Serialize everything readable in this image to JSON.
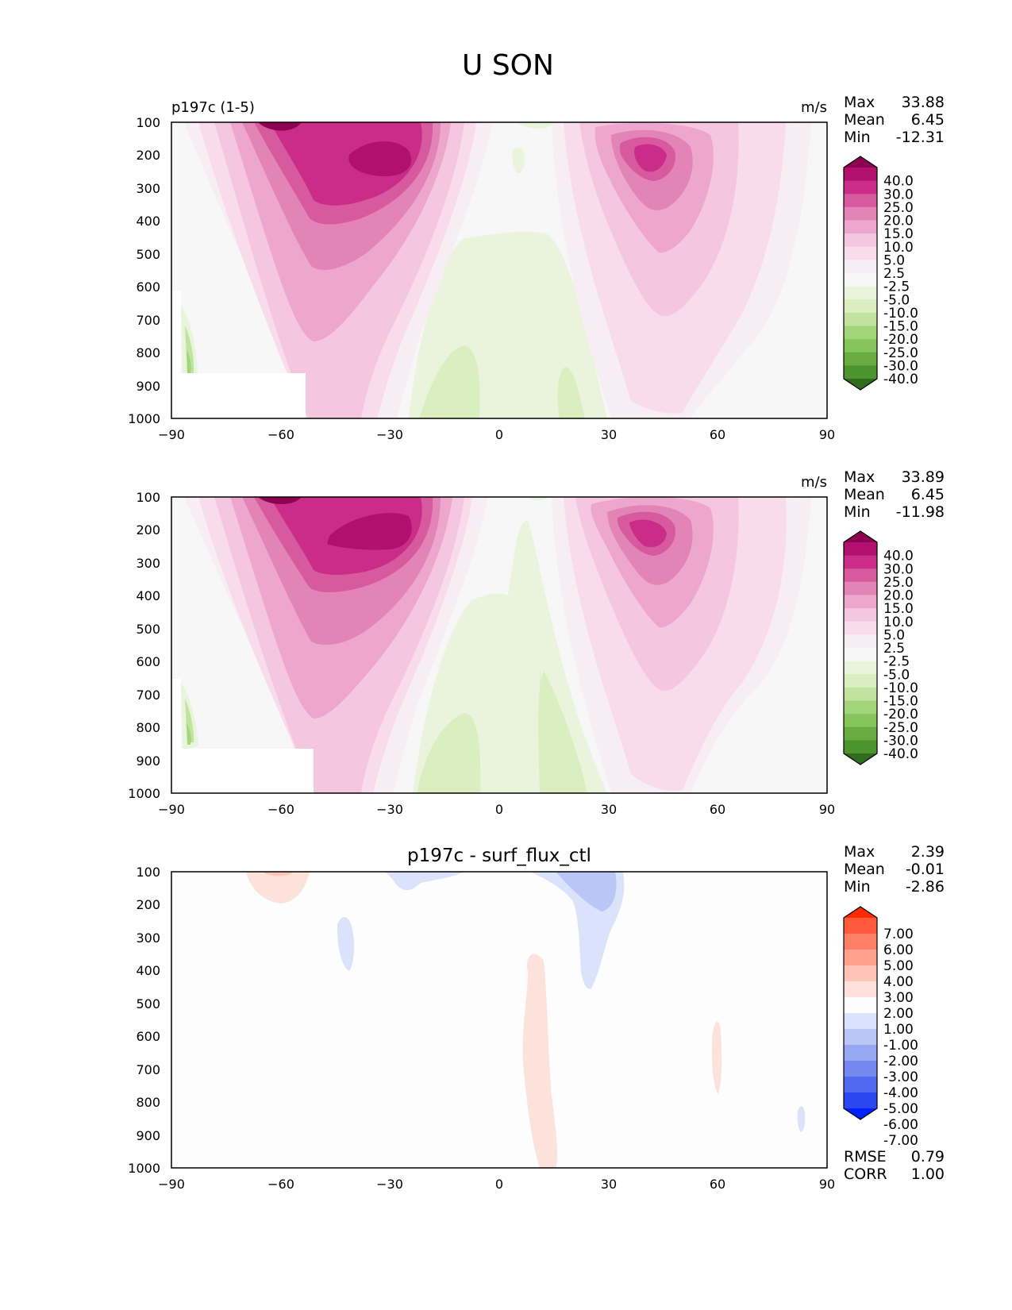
{
  "page_title": "U SON",
  "colors": {
    "div_pink_green": [
      "#8e0152",
      "#b1106f",
      "#c92d88",
      "#d85a9e",
      "#e384b7",
      "#eda6cc",
      "#f4c6e0",
      "#f8dcec",
      "#f7eef3",
      "#f7f7f7",
      "#eaf4dc",
      "#d9efbf",
      "#c0e4a0",
      "#a3d67a",
      "#86c55a",
      "#69ad41",
      "#4d932e",
      "#2f6d1b"
    ],
    "div_red_blue": [
      "#ff2a00",
      "#ff5a3c",
      "#ff7e66",
      "#ffa08c",
      "#ffc4b6",
      "#fde2dc",
      "#fdfdfd",
      "#dbe2fb",
      "#b9c6f6",
      "#96a8f2",
      "#7489ef",
      "#5169ee",
      "#2d47f0",
      "#0022ff"
    ]
  },
  "panels": [
    {
      "left_title": "p197c (1-5)",
      "center_title": "",
      "units": "m/s",
      "stats": [
        {
          "label": "Max",
          "value": "33.88"
        },
        {
          "label": "Mean",
          "value": "6.45"
        },
        {
          "label": "Min",
          "value": "-12.31"
        }
      ],
      "bottom_stats": [],
      "colorbar_labels": [
        "40.0",
        "30.0",
        "25.0",
        "20.0",
        "15.0",
        "10.0",
        "5.0",
        "2.5",
        "-2.5",
        "-5.0",
        "-10.0",
        "-15.0",
        "-20.0",
        "-25.0",
        "-30.0",
        "-40.0"
      ]
    },
    {
      "left_title": "",
      "center_title": "",
      "units": "m/s",
      "stats": [
        {
          "label": "Max",
          "value": "33.89"
        },
        {
          "label": "Mean",
          "value": "6.45"
        },
        {
          "label": "Min",
          "value": "-11.98"
        }
      ],
      "bottom_stats": [],
      "colorbar_labels": [
        "40.0",
        "30.0",
        "25.0",
        "20.0",
        "15.0",
        "10.0",
        "5.0",
        "2.5",
        "-2.5",
        "-5.0",
        "-10.0",
        "-15.0",
        "-20.0",
        "-25.0",
        "-30.0",
        "-40.0"
      ]
    },
    {
      "left_title": "",
      "center_title": "p197c - surf_flux_ctl",
      "units": "",
      "stats": [
        {
          "label": "Max",
          "value": "2.39"
        },
        {
          "label": "Mean",
          "value": "-0.01"
        },
        {
          "label": "Min",
          "value": "-2.86"
        }
      ],
      "bottom_stats": [
        {
          "label": "RMSE",
          "value": "0.79"
        },
        {
          "label": "CORR",
          "value": "1.00"
        }
      ],
      "colorbar_labels": [
        "7.00",
        "6.00",
        "5.00",
        "4.00",
        "3.00",
        "2.00",
        "1.00",
        "-1.00",
        "-2.00",
        "-3.00",
        "-4.00",
        "-5.00",
        "-6.00",
        "-7.00"
      ]
    }
  ],
  "chart_data": [
    {
      "type": "heatmap",
      "title": "p197c (1-5)",
      "units": "m/s",
      "x_ticks": [
        "−90",
        "−60",
        "−30",
        "0",
        "30",
        "60",
        "90"
      ],
      "y_ticks": [
        "100",
        "200",
        "300",
        "400",
        "500",
        "600",
        "700",
        "800",
        "900",
        "1000"
      ],
      "xlim": [
        -90,
        90
      ],
      "ylim": [
        1000,
        100
      ],
      "y_inverted": true,
      "contour_levels": [
        -40,
        -30,
        -25,
        -20,
        -15,
        -10,
        -5,
        -2.5,
        2.5,
        5,
        10,
        15,
        20,
        25,
        30,
        40
      ],
      "features": [
        {
          "kind": "jet_max",
          "lat": -42,
          "pressure": 200,
          "value": 33.88
        },
        {
          "kind": "jet_max",
          "lat": 40,
          "pressure": 200,
          "value": 25
        },
        {
          "kind": "easterly_min",
          "lat": 14,
          "pressure": 900,
          "value": -12.31
        }
      ],
      "stats": {
        "max": 33.88,
        "mean": 6.45,
        "min": -12.31
      }
    },
    {
      "type": "heatmap",
      "units": "m/s",
      "x_ticks": [
        "−90",
        "−60",
        "−30",
        "0",
        "30",
        "60",
        "90"
      ],
      "y_ticks": [
        "100",
        "200",
        "300",
        "400",
        "500",
        "600",
        "700",
        "800",
        "900",
        "1000"
      ],
      "xlim": [
        -90,
        90
      ],
      "ylim": [
        1000,
        100
      ],
      "y_inverted": true,
      "contour_levels": [
        -40,
        -30,
        -25,
        -20,
        -15,
        -10,
        -5,
        -2.5,
        2.5,
        5,
        10,
        15,
        20,
        25,
        30,
        40
      ],
      "features": [
        {
          "kind": "jet_max",
          "lat": -42,
          "pressure": 200,
          "value": 33.89
        },
        {
          "kind": "jet_max",
          "lat": 38,
          "pressure": 200,
          "value": 25
        },
        {
          "kind": "easterly_min",
          "lat": 14,
          "pressure": 900,
          "value": -11.98
        }
      ],
      "stats": {
        "max": 33.89,
        "mean": 6.45,
        "min": -11.98
      }
    },
    {
      "type": "heatmap",
      "title": "p197c - surf_flux_ctl",
      "x_ticks": [
        "−90",
        "−60",
        "−30",
        "0",
        "30",
        "60",
        "90"
      ],
      "y_ticks": [
        "100",
        "200",
        "300",
        "400",
        "500",
        "600",
        "700",
        "800",
        "900",
        "1000"
      ],
      "xlim": [
        -90,
        90
      ],
      "ylim": [
        1000,
        100
      ],
      "y_inverted": true,
      "contour_levels": [
        -7,
        -6,
        -5,
        -4,
        -3,
        -2,
        -1,
        1,
        2,
        3,
        4,
        5,
        6,
        7
      ],
      "features": [
        {
          "kind": "positive_anomaly",
          "lat": 10,
          "pressure": 650
        },
        {
          "kind": "negative_anomaly",
          "lat": 30,
          "pressure": 150
        },
        {
          "kind": "positive_anomaly",
          "lat": -60,
          "pressure": 100
        }
      ],
      "stats": {
        "max": 2.39,
        "mean": -0.01,
        "min": -2.86,
        "rmse": 0.79,
        "corr": 1.0
      }
    }
  ]
}
